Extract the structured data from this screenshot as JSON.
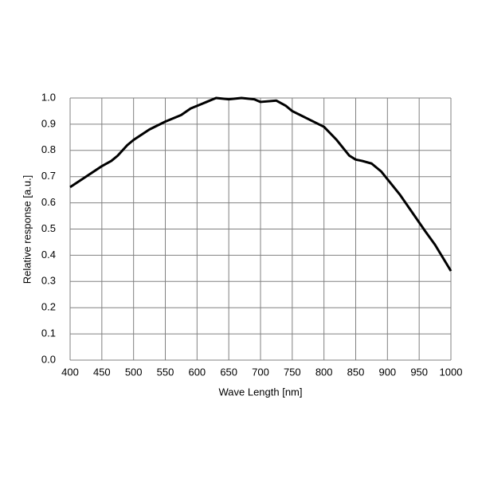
{
  "chart_data": {
    "type": "line",
    "x_label": "Wave Length [nm]",
    "y_label": "Relative response [a.u.]",
    "series": [
      {
        "color": "#000000",
        "x": [
          400,
          425,
          450,
          465,
          475,
          490,
          500,
          525,
          550,
          575,
          590,
          600,
          615,
          630,
          650,
          670,
          690,
          700,
          725,
          740,
          750,
          775,
          800,
          820,
          840,
          850,
          860,
          875,
          890,
          900,
          920,
          940,
          960,
          975,
          985,
          1000
        ],
        "values": [
          0.66,
          0.7,
          0.74,
          0.76,
          0.78,
          0.82,
          0.84,
          0.88,
          0.91,
          0.935,
          0.96,
          0.97,
          0.985,
          1.0,
          0.995,
          1.0,
          0.995,
          0.985,
          0.99,
          0.97,
          0.95,
          0.92,
          0.89,
          0.84,
          0.78,
          0.765,
          0.76,
          0.75,
          0.72,
          0.69,
          0.63,
          0.56,
          0.49,
          0.44,
          0.4,
          0.34
        ]
      }
    ],
    "xlim": [
      400,
      1000
    ],
    "xticks": [
      400,
      450,
      500,
      550,
      600,
      650,
      700,
      750,
      800,
      850,
      900,
      950,
      1000
    ],
    "ylim": [
      0,
      1
    ],
    "yticks": [
      {
        "value": 0,
        "label": "0.0"
      },
      0.1,
      0.2,
      0.3,
      0.4,
      0.5,
      0.6,
      0.7,
      0.8,
      0.9,
      {
        "value": 1,
        "label": "1.0"
      }
    ],
    "grid": true
  }
}
